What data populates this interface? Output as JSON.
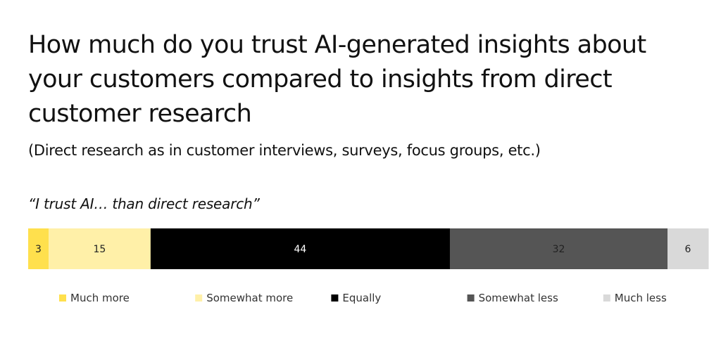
{
  "chart_data": {
    "type": "bar",
    "orientation": "horizontal-stacked-100",
    "title": "How much do you trust AI-generated insights about your customers compared to insights from direct customer research",
    "subtitle": "(Direct research as in customer interviews, surveys, focus groups, etc.)",
    "caption": "“I trust AI… than direct research”",
    "categories": [
      "Much more",
      "Somewhat more",
      "Equally",
      "Somewhat less",
      "Much less"
    ],
    "values": [
      3,
      15,
      44,
      32,
      6
    ],
    "colors": [
      "#FFE04D",
      "#FFF0A8",
      "#000000",
      "#555555",
      "#D9D9D9"
    ],
    "label_colors": [
      "#222222",
      "#222222",
      "#FFFFFF",
      "#222222",
      "#222222"
    ],
    "legend": "bottom",
    "grid": false
  }
}
